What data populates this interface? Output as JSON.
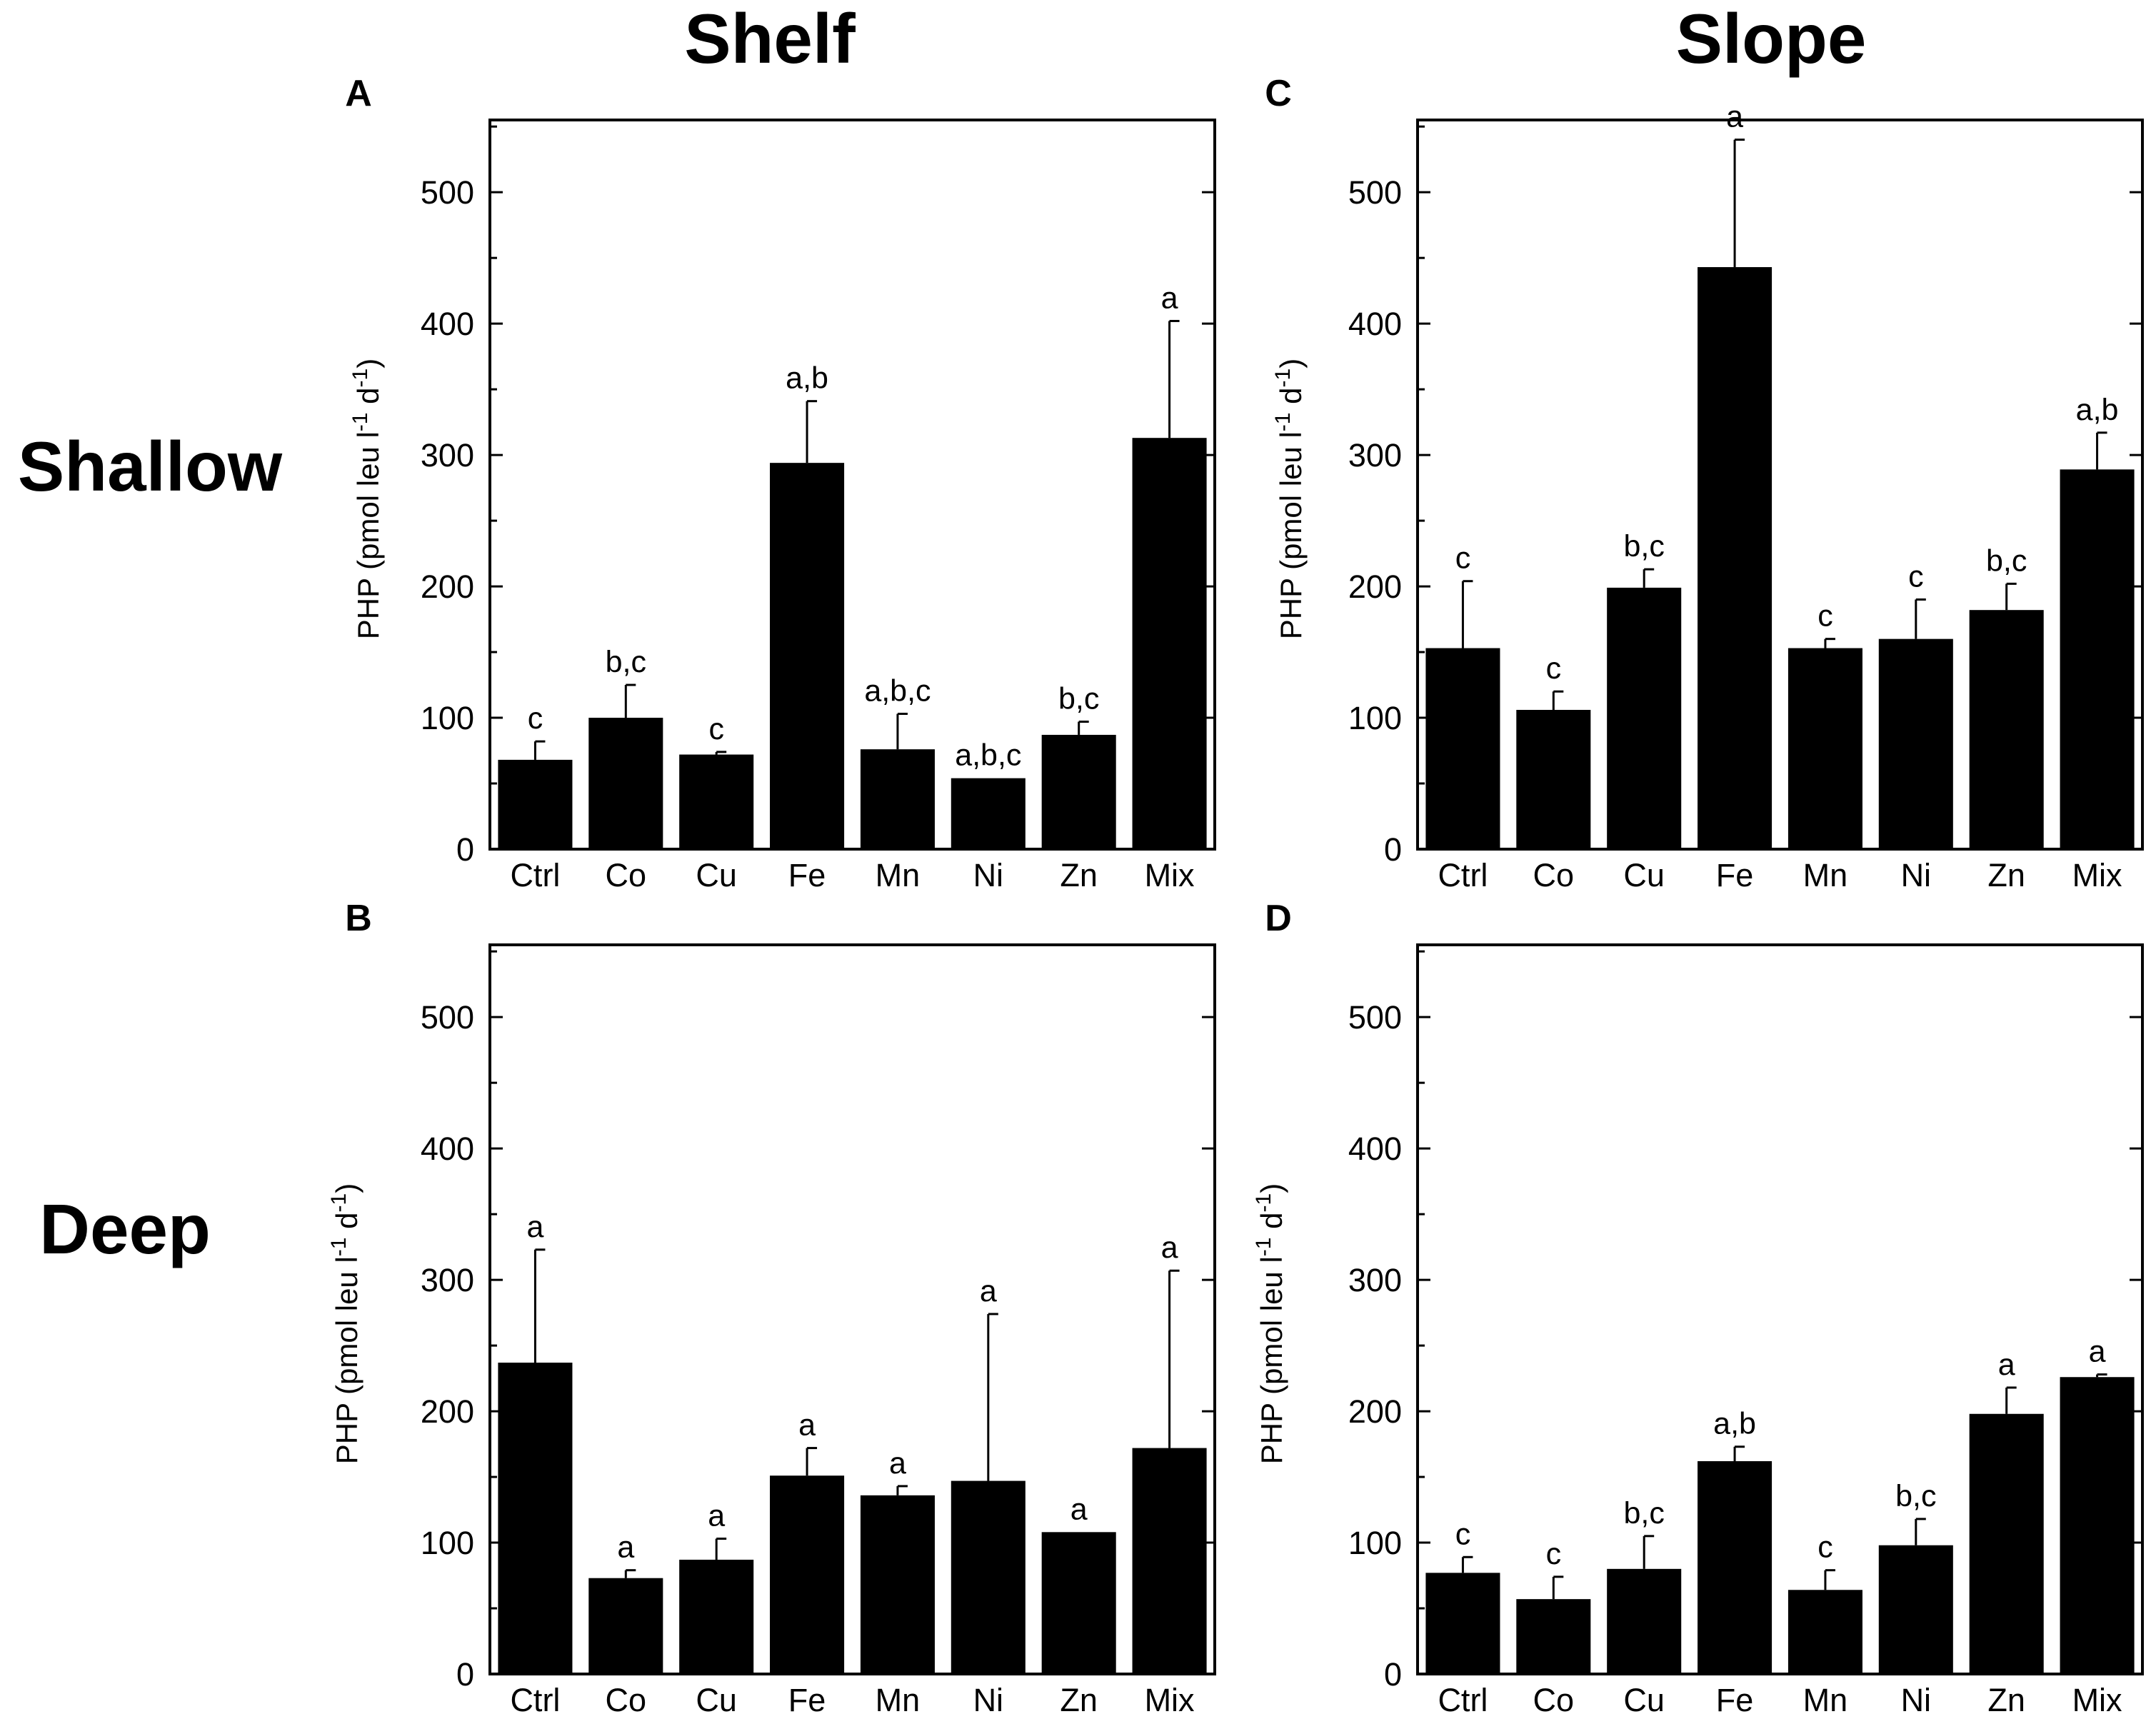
{
  "figure": {
    "column_titles": [
      "Shelf",
      "Slope"
    ],
    "row_titles": [
      "Shallow",
      "Deep"
    ]
  },
  "chart_data": [
    {
      "type": "bar",
      "panel": "A",
      "column": "Shelf",
      "row": "Shallow",
      "ylabel": "PHP (pmol leu l-1 d-1)",
      "ylim": [
        0,
        555
      ],
      "yticks": [
        0,
        100,
        200,
        300,
        400,
        500
      ],
      "categories": [
        "Ctrl",
        "Co",
        "Cu",
        "Fe",
        "Mn",
        "Ni",
        "Zn",
        "Mix"
      ],
      "values": [
        68,
        100,
        72,
        294,
        76,
        54,
        87,
        313
      ],
      "errors": [
        14,
        25,
        2,
        47,
        27,
        0,
        10,
        89
      ],
      "labels": [
        "c",
        "b,c",
        "c",
        "a,b",
        "a,b,c",
        "a,b,c",
        "b,c",
        "a"
      ]
    },
    {
      "type": "bar",
      "panel": "B",
      "column": "Shelf",
      "row": "Deep",
      "ylabel": "PHP (pmol leu l-1 d-1)",
      "ylim": [
        0,
        555
      ],
      "yticks": [
        0,
        100,
        200,
        300,
        400,
        500
      ],
      "categories": [
        "Ctrl",
        "Co",
        "Cu",
        "Fe",
        "Mn",
        "Ni",
        "Zn",
        "Mix"
      ],
      "values": [
        237,
        73,
        87,
        151,
        136,
        147,
        108,
        172
      ],
      "errors": [
        86,
        6,
        16,
        21,
        7,
        127,
        0,
        135
      ],
      "labels": [
        "a",
        "a",
        "a",
        "a",
        "a",
        "a",
        "a",
        "a"
      ]
    },
    {
      "type": "bar",
      "panel": "C",
      "column": "Slope",
      "row": "Shallow",
      "ylabel": "PHP (pmol leu l-1 d-1)",
      "ylim": [
        0,
        555
      ],
      "yticks": [
        0,
        100,
        200,
        300,
        400,
        500
      ],
      "categories": [
        "Ctrl",
        "Co",
        "Cu",
        "Fe",
        "Mn",
        "Ni",
        "Zn",
        "Mix"
      ],
      "values": [
        153,
        106,
        199,
        443,
        153,
        160,
        182,
        289
      ],
      "errors": [
        51,
        14,
        14,
        97,
        7,
        30,
        20,
        28
      ],
      "labels": [
        "c",
        "c",
        "b,c",
        "a",
        "c",
        "c",
        "b,c",
        "a,b"
      ]
    },
    {
      "type": "bar",
      "panel": "D",
      "column": "Slope",
      "row": "Deep",
      "ylabel": "PHP (pmol leu l-1 d-1)",
      "ylim": [
        0,
        555
      ],
      "yticks": [
        0,
        100,
        200,
        300,
        400,
        500
      ],
      "categories": [
        "Ctrl",
        "Co",
        "Cu",
        "Fe",
        "Mn",
        "Ni",
        "Zn",
        "Mix"
      ],
      "values": [
        77,
        57,
        80,
        162,
        64,
        98,
        198,
        226
      ],
      "errors": [
        12,
        17,
        25,
        11,
        15,
        20,
        20,
        2
      ],
      "labels": [
        "c",
        "c",
        "b,c",
        "a,b",
        "c",
        "b,c",
        "a",
        "a"
      ]
    }
  ]
}
